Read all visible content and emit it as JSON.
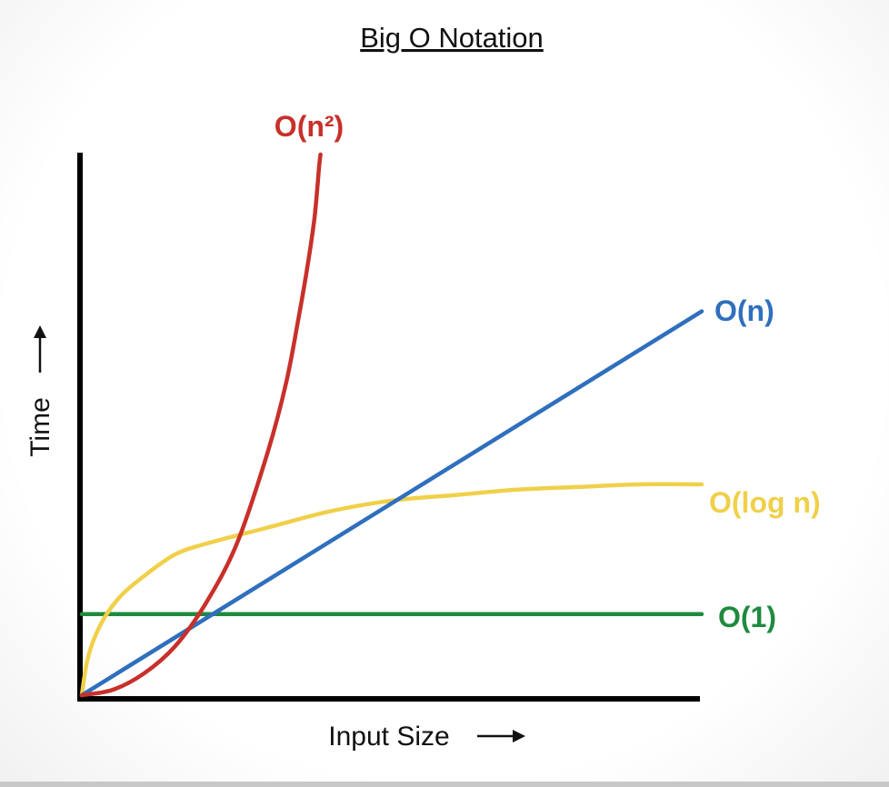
{
  "chart_data": {
    "type": "line",
    "title": "Big O Notation",
    "xlabel": "Input Size",
    "ylabel": "Time",
    "grid": false,
    "legend": "labels at line ends",
    "series": [
      {
        "name": "O(n²)",
        "color": "#c8302a",
        "label_end": [
          0.385,
          1.0
        ],
        "x": [
          0,
          0.05,
          0.1,
          0.15,
          0.2,
          0.25,
          0.3,
          0.33,
          0.35,
          0.365,
          0.375,
          0.38,
          0.383,
          0.385
        ],
        "y": [
          0,
          0.01,
          0.04,
          0.09,
          0.17,
          0.28,
          0.45,
          0.58,
          0.7,
          0.8,
          0.88,
          0.94,
          0.98,
          1.0
        ]
      },
      {
        "name": "O(n)",
        "color": "#2f6fbd",
        "x": [
          0,
          1.0
        ],
        "y": [
          0,
          0.71
        ]
      },
      {
        "name": "O(log n)",
        "color": "#f0d04a",
        "x": [
          0,
          0.01,
          0.03,
          0.06,
          0.1,
          0.15,
          0.2,
          0.3,
          0.4,
          0.5,
          0.6,
          0.7,
          0.8,
          0.9,
          1.0
        ],
        "y": [
          0,
          0.07,
          0.13,
          0.18,
          0.22,
          0.26,
          0.28,
          0.31,
          0.34,
          0.36,
          0.37,
          0.38,
          0.385,
          0.39,
          0.39
        ]
      },
      {
        "name": "O(1)",
        "color": "#1f8a3e",
        "x": [
          0,
          1.0
        ],
        "y": [
          0.15,
          0.15
        ]
      }
    ]
  }
}
